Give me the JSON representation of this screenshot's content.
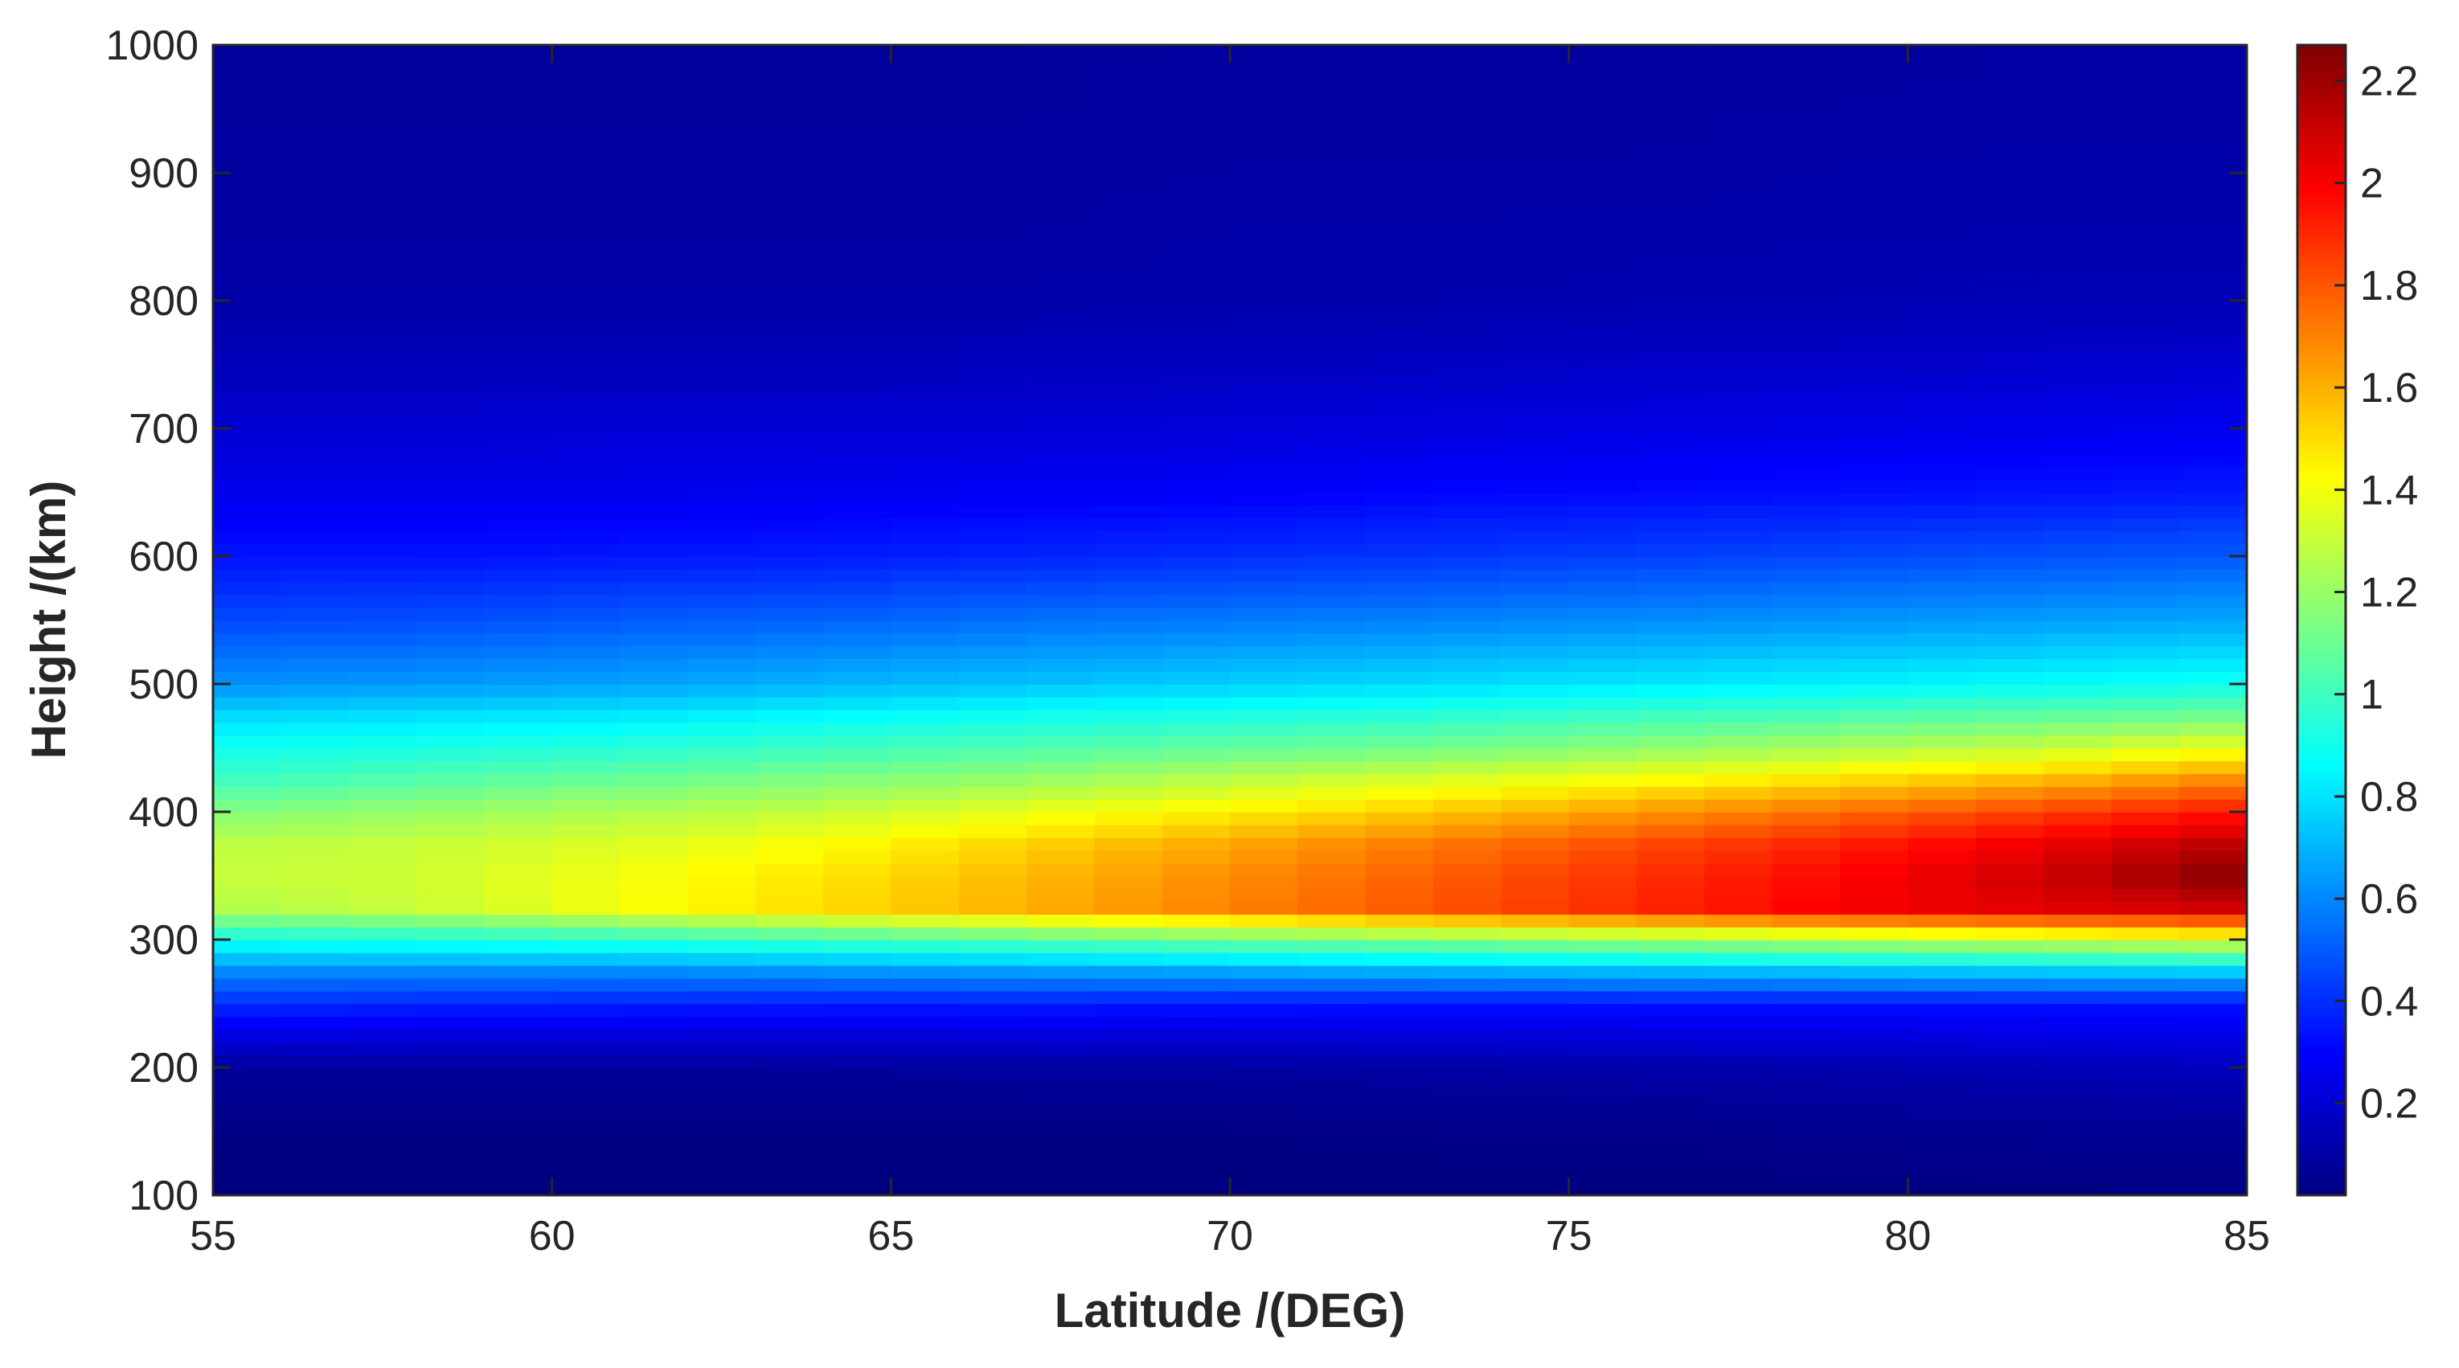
{
  "chart_data": {
    "type": "heatmap",
    "xlabel": "Latitude /(DEG)",
    "ylabel": "Height /(km)",
    "xlim": [
      55,
      85
    ],
    "ylim": [
      100,
      1000
    ],
    "x_ticks": [
      "55",
      "60",
      "65",
      "70",
      "75",
      "80",
      "85"
    ],
    "y_ticks": [
      "100",
      "200",
      "300",
      "400",
      "500",
      "600",
      "700",
      "800",
      "900",
      "1000"
    ],
    "colorbar": {
      "colormap": "jet",
      "range": [
        0.02,
        2.27
      ],
      "ticks": [
        "0.2",
        "0.4",
        "0.6",
        "0.8",
        "1",
        "1.2",
        "1.4",
        "1.6",
        "1.8",
        "2",
        "2.2"
      ]
    },
    "x": [
      55,
      58,
      61,
      64,
      67,
      70,
      73,
      76,
      79,
      82,
      85
    ],
    "y": [
      100,
      150,
      200,
      250,
      275,
      300,
      325,
      350,
      375,
      400,
      425,
      450,
      475,
      500,
      550,
      600,
      650,
      700,
      750,
      800,
      900,
      1000
    ],
    "z": [
      [
        0.02,
        0.02,
        0.02,
        0.02,
        0.02,
        0.02,
        0.02,
        0.02,
        0.03,
        0.03,
        0.03
      ],
      [
        0.03,
        0.03,
        0.03,
        0.03,
        0.03,
        0.03,
        0.04,
        0.04,
        0.05,
        0.06,
        0.07
      ],
      [
        0.08,
        0.08,
        0.08,
        0.08,
        0.09,
        0.09,
        0.1,
        0.11,
        0.12,
        0.14,
        0.16
      ],
      [
        0.4,
        0.38,
        0.37,
        0.36,
        0.36,
        0.35,
        0.34,
        0.34,
        0.34,
        0.34,
        0.34
      ],
      [
        0.6,
        0.6,
        0.6,
        0.62,
        0.64,
        0.66,
        0.68,
        0.7,
        0.72,
        0.74,
        0.76
      ],
      [
        0.9,
        0.92,
        0.95,
        1.0,
        1.05,
        1.1,
        1.15,
        1.2,
        1.25,
        1.3,
        1.35
      ],
      [
        1.25,
        1.3,
        1.4,
        1.5,
        1.6,
        1.7,
        1.8,
        1.9,
        2.0,
        2.05,
        2.1
      ],
      [
        1.3,
        1.32,
        1.4,
        1.48,
        1.58,
        1.68,
        1.78,
        1.88,
        1.98,
        2.1,
        2.27
      ],
      [
        1.28,
        1.3,
        1.35,
        1.42,
        1.52,
        1.62,
        1.72,
        1.82,
        1.92,
        2.02,
        2.15
      ],
      [
        1.15,
        1.2,
        1.25,
        1.3,
        1.38,
        1.46,
        1.55,
        1.65,
        1.75,
        1.85,
        1.95
      ],
      [
        1.0,
        1.05,
        1.1,
        1.15,
        1.2,
        1.28,
        1.35,
        1.42,
        1.5,
        1.58,
        1.7
      ],
      [
        0.9,
        0.92,
        0.95,
        1.0,
        1.04,
        1.08,
        1.12,
        1.18,
        1.24,
        1.3,
        1.4
      ],
      [
        0.78,
        0.8,
        0.82,
        0.86,
        0.9,
        0.93,
        0.96,
        1.0,
        1.04,
        1.08,
        1.12
      ],
      [
        0.62,
        0.64,
        0.66,
        0.7,
        0.73,
        0.76,
        0.79,
        0.82,
        0.84,
        0.87,
        0.9
      ],
      [
        0.46,
        0.47,
        0.5,
        0.52,
        0.55,
        0.57,
        0.59,
        0.61,
        0.63,
        0.65,
        0.67
      ],
      [
        0.34,
        0.34,
        0.35,
        0.36,
        0.38,
        0.4,
        0.42,
        0.44,
        0.46,
        0.48,
        0.5
      ],
      [
        0.26,
        0.26,
        0.26,
        0.27,
        0.28,
        0.29,
        0.31,
        0.32,
        0.33,
        0.34,
        0.36
      ],
      [
        0.2,
        0.2,
        0.21,
        0.21,
        0.21,
        0.22,
        0.23,
        0.24,
        0.25,
        0.26,
        0.27
      ],
      [
        0.15,
        0.15,
        0.15,
        0.15,
        0.16,
        0.16,
        0.17,
        0.18,
        0.18,
        0.19,
        0.2
      ],
      [
        0.11,
        0.11,
        0.11,
        0.11,
        0.11,
        0.12,
        0.12,
        0.13,
        0.13,
        0.14,
        0.14
      ],
      [
        0.09,
        0.09,
        0.09,
        0.09,
        0.09,
        0.1,
        0.1,
        0.1,
        0.11,
        0.11,
        0.11
      ],
      [
        0.08,
        0.08,
        0.08,
        0.08,
        0.08,
        0.09,
        0.09,
        0.09,
        0.09,
        0.1,
        0.1
      ]
    ]
  }
}
